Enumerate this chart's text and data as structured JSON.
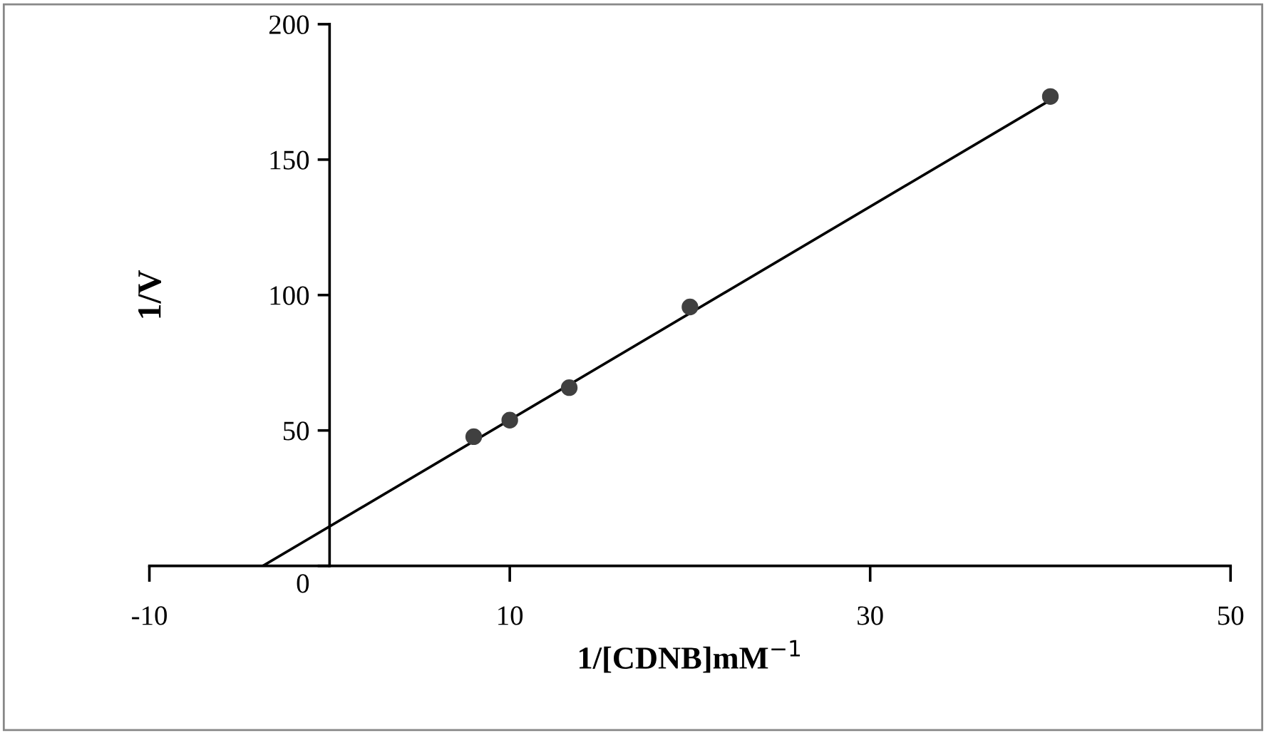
{
  "chart_data": {
    "type": "scatter",
    "xlabel": "1/[CDNB]mM$^{−1}$",
    "ylabel": "1/V",
    "x": [
      8,
      10,
      13.3,
      20,
      40
    ],
    "series": [
      {
        "color": "#404040",
        "values": [
          47.7,
          53.8,
          65.8,
          95.6,
          173.3
        ],
        "marker": "circle"
      },
      {
        "type": "line",
        "color": "#000000",
        "x": [
          -3.7,
          40
        ],
        "values": [
          0,
          172
        ],
        "marker": "none",
        "line_style": "solid"
      }
    ],
    "xlim": [
      -10,
      50
    ],
    "xticks": [
      -10,
      10,
      30,
      50
    ],
    "ylim": [
      0,
      200
    ],
    "yticks": [
      0,
      50,
      100,
      150,
      200
    ],
    "grid": false,
    "legend": false
  }
}
